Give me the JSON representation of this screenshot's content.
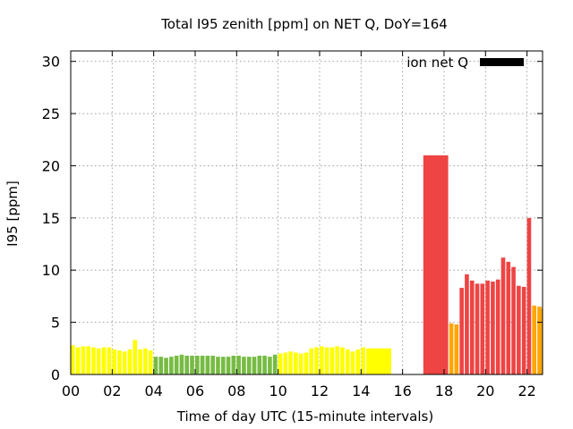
{
  "chart_data": {
    "type": "bar",
    "title": "Total I95 zenith [ppm] on NET Q, DoY=164",
    "xlabel": "Time of day UTC (15-minute intervals)",
    "ylabel": "I95 [ppm]",
    "xlim": [
      0,
      22.75
    ],
    "ylim": [
      0,
      31
    ],
    "x_ticks": [
      0,
      2,
      4,
      6,
      8,
      10,
      12,
      14,
      16,
      18,
      20,
      22
    ],
    "x_tick_labels": [
      "00",
      "02",
      "04",
      "06",
      "08",
      "10",
      "12",
      "14",
      "16",
      "18",
      "20",
      "22"
    ],
    "y_ticks": [
      0,
      5,
      10,
      15,
      20,
      25,
      30
    ],
    "y_tick_labels": [
      "0",
      "5",
      "10",
      "15",
      "20",
      "25",
      "30"
    ],
    "grid": true,
    "legend": {
      "label": "ion net Q",
      "color": "#000000",
      "placement": "top-right"
    },
    "colors": {
      "yellow": "#ffff00",
      "green": "#77bb44",
      "orange": "#ffa500",
      "red": "#ee4444"
    },
    "bars": [
      {
        "start": 0.0,
        "width": 0.2,
        "value": 2.8,
        "color": "yellow"
      },
      {
        "start": 0.25,
        "width": 0.2,
        "value": 2.6,
        "color": "yellow"
      },
      {
        "start": 0.5,
        "width": 0.2,
        "value": 2.7,
        "color": "yellow"
      },
      {
        "start": 0.75,
        "width": 0.2,
        "value": 2.7,
        "color": "yellow"
      },
      {
        "start": 1.0,
        "width": 0.2,
        "value": 2.6,
        "color": "yellow"
      },
      {
        "start": 1.25,
        "width": 0.2,
        "value": 2.5,
        "color": "yellow"
      },
      {
        "start": 1.5,
        "width": 0.2,
        "value": 2.6,
        "color": "yellow"
      },
      {
        "start": 1.75,
        "width": 0.2,
        "value": 2.6,
        "color": "yellow"
      },
      {
        "start": 2.0,
        "width": 0.2,
        "value": 2.4,
        "color": "yellow"
      },
      {
        "start": 2.25,
        "width": 0.2,
        "value": 2.3,
        "color": "yellow"
      },
      {
        "start": 2.5,
        "width": 0.2,
        "value": 2.2,
        "color": "yellow"
      },
      {
        "start": 2.75,
        "width": 0.2,
        "value": 2.4,
        "color": "yellow"
      },
      {
        "start": 3.0,
        "width": 0.2,
        "value": 3.3,
        "color": "yellow"
      },
      {
        "start": 3.25,
        "width": 0.2,
        "value": 2.4,
        "color": "yellow"
      },
      {
        "start": 3.5,
        "width": 0.2,
        "value": 2.5,
        "color": "yellow"
      },
      {
        "start": 3.75,
        "width": 0.2,
        "value": 2.3,
        "color": "yellow"
      },
      {
        "start": 4.0,
        "width": 0.2,
        "value": 1.7,
        "color": "green"
      },
      {
        "start": 4.25,
        "width": 0.2,
        "value": 1.7,
        "color": "green"
      },
      {
        "start": 4.5,
        "width": 0.2,
        "value": 1.6,
        "color": "green"
      },
      {
        "start": 4.75,
        "width": 0.2,
        "value": 1.7,
        "color": "green"
      },
      {
        "start": 5.0,
        "width": 0.2,
        "value": 1.8,
        "color": "green"
      },
      {
        "start": 5.25,
        "width": 0.2,
        "value": 1.9,
        "color": "green"
      },
      {
        "start": 5.5,
        "width": 0.2,
        "value": 1.8,
        "color": "green"
      },
      {
        "start": 5.75,
        "width": 0.2,
        "value": 1.8,
        "color": "green"
      },
      {
        "start": 6.0,
        "width": 0.2,
        "value": 1.8,
        "color": "green"
      },
      {
        "start": 6.25,
        "width": 0.2,
        "value": 1.8,
        "color": "green"
      },
      {
        "start": 6.5,
        "width": 0.2,
        "value": 1.8,
        "color": "green"
      },
      {
        "start": 6.75,
        "width": 0.2,
        "value": 1.8,
        "color": "green"
      },
      {
        "start": 7.0,
        "width": 0.2,
        "value": 1.7,
        "color": "green"
      },
      {
        "start": 7.25,
        "width": 0.2,
        "value": 1.7,
        "color": "green"
      },
      {
        "start": 7.5,
        "width": 0.2,
        "value": 1.7,
        "color": "green"
      },
      {
        "start": 7.75,
        "width": 0.2,
        "value": 1.8,
        "color": "green"
      },
      {
        "start": 8.0,
        "width": 0.2,
        "value": 1.8,
        "color": "green"
      },
      {
        "start": 8.25,
        "width": 0.2,
        "value": 1.7,
        "color": "green"
      },
      {
        "start": 8.5,
        "width": 0.2,
        "value": 1.7,
        "color": "green"
      },
      {
        "start": 8.75,
        "width": 0.2,
        "value": 1.7,
        "color": "green"
      },
      {
        "start": 9.0,
        "width": 0.2,
        "value": 1.8,
        "color": "green"
      },
      {
        "start": 9.25,
        "width": 0.2,
        "value": 1.8,
        "color": "green"
      },
      {
        "start": 9.5,
        "width": 0.2,
        "value": 1.7,
        "color": "green"
      },
      {
        "start": 9.75,
        "width": 0.2,
        "value": 1.9,
        "color": "green"
      },
      {
        "start": 10.0,
        "width": 0.2,
        "value": 2.0,
        "color": "yellow"
      },
      {
        "start": 10.25,
        "width": 0.2,
        "value": 2.1,
        "color": "yellow"
      },
      {
        "start": 10.5,
        "width": 0.2,
        "value": 2.2,
        "color": "yellow"
      },
      {
        "start": 10.75,
        "width": 0.2,
        "value": 2.1,
        "color": "yellow"
      },
      {
        "start": 11.0,
        "width": 0.2,
        "value": 2.0,
        "color": "yellow"
      },
      {
        "start": 11.25,
        "width": 0.2,
        "value": 2.1,
        "color": "yellow"
      },
      {
        "start": 11.5,
        "width": 0.2,
        "value": 2.5,
        "color": "yellow"
      },
      {
        "start": 11.75,
        "width": 0.2,
        "value": 2.6,
        "color": "yellow"
      },
      {
        "start": 12.0,
        "width": 0.2,
        "value": 2.7,
        "color": "yellow"
      },
      {
        "start": 12.25,
        "width": 0.2,
        "value": 2.6,
        "color": "yellow"
      },
      {
        "start": 12.5,
        "width": 0.2,
        "value": 2.6,
        "color": "yellow"
      },
      {
        "start": 12.75,
        "width": 0.2,
        "value": 2.7,
        "color": "yellow"
      },
      {
        "start": 13.0,
        "width": 0.2,
        "value": 2.6,
        "color": "yellow"
      },
      {
        "start": 13.25,
        "width": 0.2,
        "value": 2.4,
        "color": "yellow"
      },
      {
        "start": 13.5,
        "width": 0.2,
        "value": 2.2,
        "color": "yellow"
      },
      {
        "start": 13.75,
        "width": 0.2,
        "value": 2.4,
        "color": "yellow"
      },
      {
        "start": 14.0,
        "width": 0.2,
        "value": 2.6,
        "color": "yellow"
      },
      {
        "start": 14.25,
        "width": 1.2,
        "value": 2.5,
        "color": "yellow"
      },
      {
        "start": 17.0,
        "width": 1.2,
        "value": 21.0,
        "color": "red"
      },
      {
        "start": 18.25,
        "width": 0.2,
        "value": 4.9,
        "color": "orange"
      },
      {
        "start": 18.5,
        "width": 0.2,
        "value": 4.8,
        "color": "orange"
      },
      {
        "start": 18.75,
        "width": 0.2,
        "value": 8.3,
        "color": "red"
      },
      {
        "start": 19.0,
        "width": 0.2,
        "value": 9.6,
        "color": "red"
      },
      {
        "start": 19.25,
        "width": 0.2,
        "value": 9.0,
        "color": "red"
      },
      {
        "start": 19.5,
        "width": 0.2,
        "value": 8.7,
        "color": "red"
      },
      {
        "start": 19.75,
        "width": 0.2,
        "value": 8.7,
        "color": "red"
      },
      {
        "start": 20.0,
        "width": 0.2,
        "value": 9.0,
        "color": "red"
      },
      {
        "start": 20.25,
        "width": 0.2,
        "value": 8.9,
        "color": "red"
      },
      {
        "start": 20.5,
        "width": 0.2,
        "value": 9.1,
        "color": "red"
      },
      {
        "start": 20.75,
        "width": 0.2,
        "value": 11.2,
        "color": "red"
      },
      {
        "start": 21.0,
        "width": 0.2,
        "value": 10.8,
        "color": "red"
      },
      {
        "start": 21.25,
        "width": 0.2,
        "value": 10.3,
        "color": "red"
      },
      {
        "start": 21.5,
        "width": 0.2,
        "value": 8.5,
        "color": "red"
      },
      {
        "start": 21.75,
        "width": 0.2,
        "value": 8.4,
        "color": "red"
      },
      {
        "start": 22.0,
        "width": 0.2,
        "value": 15.0,
        "color": "red"
      },
      {
        "start": 22.25,
        "width": 0.2,
        "value": 6.6,
        "color": "orange"
      },
      {
        "start": 22.5,
        "width": 0.2,
        "value": 6.5,
        "color": "orange"
      },
      {
        "start": 22.7,
        "width": 0.05,
        "value": 6.3,
        "color": "orange"
      }
    ]
  }
}
